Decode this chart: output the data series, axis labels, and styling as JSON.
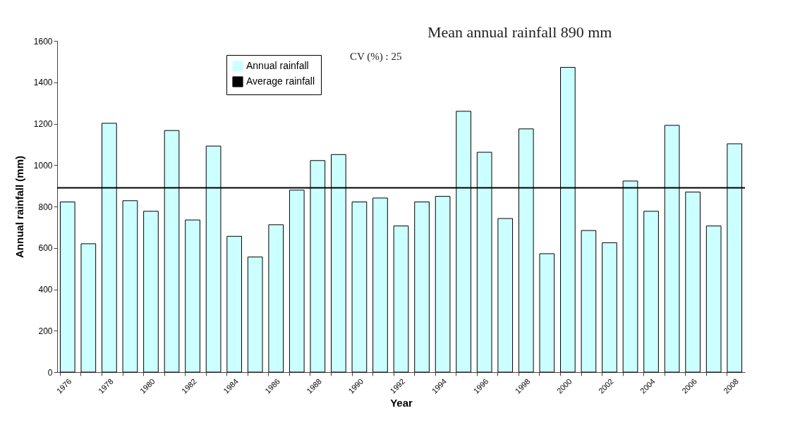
{
  "chart_data": {
    "type": "bar",
    "xlabel": "Year",
    "ylabel": "Annual rainfall (mm)",
    "categories": [
      "1976",
      null,
      "1978",
      null,
      "1980",
      null,
      "1982",
      null,
      "1984",
      null,
      "1986",
      null,
      "1988",
      null,
      "1990",
      null,
      "1992",
      null,
      "1994",
      null,
      "1996",
      null,
      "1998",
      null,
      "2000",
      null,
      "2002",
      null,
      "2004",
      null,
      "2006",
      null,
      "2008"
    ],
    "series": [
      {
        "name": "Annual rainfall",
        "color": "#ccffff",
        "values": [
          822,
          620,
          1202,
          828,
          777,
          1167,
          735,
          1092,
          656,
          556,
          712,
          879,
          1022,
          1051,
          822,
          841,
          706,
          822,
          849,
          1260,
          1062,
          742,
          1175,
          572,
          1472,
          684,
          625,
          923,
          777,
          1192,
          870,
          706,
          1103
        ]
      }
    ],
    "ylim": [
      0,
      1600
    ],
    "yticks": [
      0,
      200,
      400,
      600,
      800,
      1000,
      1200,
      1400,
      1600
    ],
    "grid": false,
    "legend": "top left",
    "ref_lines": [
      {
        "axis": "y",
        "value": 890,
        "label": "Average rainfall",
        "color": "#000000"
      }
    ],
    "annotations": [
      "Mean annual rainfall 890 mm",
      "CV (%) : 25"
    ]
  }
}
